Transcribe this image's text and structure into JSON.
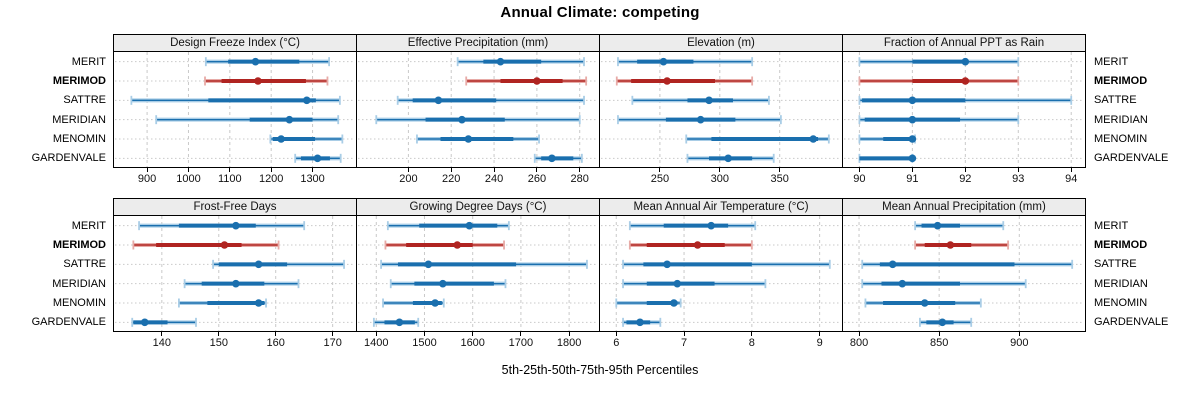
{
  "header": {
    "title": "Annual Climate: competing"
  },
  "footer": {
    "label": "5th-25th-50th-75th-95th Percentiles"
  },
  "locations": [
    "MERIT",
    "MERIMOD",
    "SATTRE",
    "MERIDIAN",
    "MENOMIN",
    "GARDENVALE"
  ],
  "highlighted_location": "MERIMOD",
  "colors": {
    "series_blue": "#1a6fae",
    "series_blue_light": "#a9cde6",
    "series_red": "#b02421",
    "series_red_light": "#e7aba7",
    "grid": "#c9c9c9",
    "strip_bg": "#ececec",
    "panel_border": "#000000",
    "text": "#111111"
  },
  "chart_data": {
    "type": "dotplot-intervals",
    "subtitle_note": "each row shows 5th-25th-50th-75th-95th percentile whisker/band/dot",
    "percentiles": [
      "5th",
      "25th",
      "50th",
      "75th",
      "95th"
    ],
    "row_order_top_to_bottom": [
      "MERIT",
      "MERIMOD",
      "SATTRE",
      "MERIDIAN",
      "MENOMIN",
      "GARDENVALE"
    ],
    "legend": "none",
    "grid": "dashed vertical at ticks, dotted horizontal per row",
    "panels": [
      {
        "title": "Design Freeze Index (°C)",
        "row": 1,
        "col": 1,
        "xlim": [
          820,
          1405
        ],
        "ticks": [
          900,
          1000,
          1100,
          1200,
          1300
        ],
        "values": [
          [
            1042,
            1096,
            1162,
            1268,
            1340
          ],
          [
            1040,
            1080,
            1168,
            1284,
            1336
          ],
          [
            862,
            1048,
            1286,
            1308,
            1366
          ],
          [
            922,
            1148,
            1244,
            1300,
            1362
          ],
          [
            1198,
            1204,
            1224,
            1306,
            1372
          ],
          [
            1258,
            1272,
            1312,
            1342,
            1368
          ]
        ]
      },
      {
        "title": "Effective Precipitation (mm)",
        "row": 1,
        "col": 2,
        "xlim": [
          176,
          289
        ],
        "ticks": [
          200,
          220,
          240,
          260,
          280
        ],
        "values": [
          [
            223,
            235,
            243,
            262,
            282
          ],
          [
            227,
            243,
            260,
            272,
            283
          ],
          [
            195,
            202,
            214,
            241,
            282
          ],
          [
            185,
            208,
            225,
            245,
            280
          ],
          [
            204,
            215,
            228,
            249,
            261
          ],
          [
            259,
            262,
            267,
            277,
            281
          ]
        ]
      },
      {
        "title": "Elevation (m)",
        "row": 1,
        "col": 3,
        "xlim": [
          200,
          402
        ],
        "ticks": [
          250,
          300,
          350
        ],
        "values": [
          [
            215,
            231,
            253,
            278,
            327
          ],
          [
            214,
            226,
            256,
            296,
            327
          ],
          [
            227,
            273,
            291,
            311,
            341
          ],
          [
            215,
            255,
            284,
            313,
            351
          ],
          [
            272,
            293,
            378,
            382,
            391
          ],
          [
            273,
            291,
            307,
            327,
            345
          ]
        ]
      },
      {
        "title": "Fraction of Annual PPT as Rain",
        "row": 1,
        "col": 4,
        "xlim": [
          89.69,
          94.26
        ],
        "ticks": [
          90,
          91,
          92,
          93,
          94
        ],
        "values": [
          [
            90,
            91,
            92,
            92,
            93
          ],
          [
            90,
            91,
            92,
            92,
            93
          ],
          [
            90,
            90.05,
            91,
            92,
            94
          ],
          [
            90,
            90.1,
            91,
            91.9,
            93
          ],
          [
            90,
            90.45,
            91,
            91,
            91.05
          ],
          [
            90,
            90,
            91,
            91,
            91
          ]
        ]
      },
      {
        "title": "Frost-Free Days",
        "row": 2,
        "col": 1,
        "xlim": [
          131.6,
          174.1
        ],
        "ticks": [
          140,
          150,
          160,
          170
        ],
        "values": [
          [
            136,
            143,
            153,
            156.5,
            165
          ],
          [
            135,
            139,
            151,
            154,
            160.5
          ],
          [
            149,
            150,
            157,
            162,
            172
          ],
          [
            144,
            147,
            153,
            158,
            164
          ],
          [
            143,
            148,
            157,
            158,
            158.3
          ],
          [
            134.8,
            135,
            137,
            141,
            146
          ]
        ]
      },
      {
        "title": "Growing Degree Days (°C)",
        "row": 2,
        "col": 2,
        "xlim": [
          1360,
          1862
        ],
        "ticks": [
          1400,
          1500,
          1600,
          1700,
          1800
        ],
        "values": [
          [
            1424,
            1489,
            1593,
            1651,
            1675
          ],
          [
            1419,
            1462,
            1568,
            1600,
            1665
          ],
          [
            1410,
            1445,
            1508,
            1690,
            1837
          ],
          [
            1430,
            1479,
            1538,
            1644,
            1668
          ],
          [
            1414,
            1476,
            1522,
            1536,
            1540
          ],
          [
            1395,
            1417,
            1448,
            1480,
            1487
          ]
        ]
      },
      {
        "title": "Mean Annual Air Temperature (°C)",
        "row": 2,
        "col": 3,
        "xlim": [
          5.76,
          9.33
        ],
        "ticks": [
          6,
          7,
          8,
          9
        ],
        "values": [
          [
            6.2,
            6.7,
            7.4,
            7.65,
            8.05
          ],
          [
            6.2,
            6.45,
            7.2,
            7.6,
            8.0
          ],
          [
            6.1,
            6.4,
            6.75,
            8.0,
            9.15
          ],
          [
            6.1,
            6.45,
            6.9,
            7.45,
            8.2
          ],
          [
            6.0,
            6.45,
            6.85,
            6.9,
            6.95
          ],
          [
            6.1,
            6.15,
            6.35,
            6.5,
            6.65
          ]
        ]
      },
      {
        "title": "Mean Annual Precipitation (mm)",
        "row": 2,
        "col": 4,
        "xlim": [
          790,
          941
        ],
        "ticks": [
          800,
          850,
          900
        ],
        "values": [
          [
            835,
            839,
            849,
            863,
            890
          ],
          [
            835,
            841,
            857,
            870,
            893
          ],
          [
            802,
            813,
            821,
            897,
            933
          ],
          [
            802,
            814,
            827,
            863,
            904
          ],
          [
            804,
            815,
            841,
            860,
            876
          ],
          [
            838,
            842,
            852,
            859,
            870
          ]
        ]
      }
    ]
  }
}
